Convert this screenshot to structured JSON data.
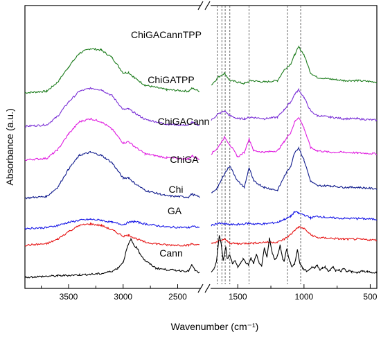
{
  "chart_data": {
    "type": "line",
    "xlabel": "Wavenumber (cm⁻¹)",
    "ylabel": "Absorbance (a.u.)",
    "x_axis": {
      "reversed": true,
      "broken": true,
      "break_between": [
        2300,
        1700
      ],
      "segments": [
        [
          3900,
          2300
        ],
        [
          1700,
          450
        ]
      ],
      "ticks": [
        3500,
        3000,
        2500,
        1500,
        1000,
        500
      ],
      "tick_labels": [
        "3500",
        "3000",
        "2500",
        "1500",
        "1000",
        "500"
      ]
    },
    "y_ticks_shown": false,
    "reference_lines_x": [
      1655,
      1620,
      1595,
      1560,
      1415,
      1125,
      1025
    ],
    "series": [
      {
        "name": "ChiGACannTPP",
        "color": "#1e7d1e",
        "offset": 6.0,
        "x": [
          3900,
          3700,
          3600,
          3500,
          3400,
          3300,
          3200,
          3100,
          3000,
          2950,
          2900,
          2800,
          2600,
          2400,
          2370,
          2300,
          1700,
          1650,
          1600,
          1560,
          1500,
          1450,
          1400,
          1300,
          1200,
          1150,
          1100,
          1070,
          1040,
          1000,
          950,
          900,
          800,
          700,
          600,
          450
        ],
        "y": [
          0.05,
          0.1,
          0.4,
          0.9,
          1.35,
          1.5,
          1.45,
          1.2,
          0.7,
          0.72,
          0.55,
          0.3,
          0.15,
          0.1,
          0.2,
          0.1,
          0.3,
          0.55,
          0.7,
          0.45,
          0.4,
          0.35,
          0.45,
          0.4,
          0.45,
          0.8,
          1.0,
          1.3,
          1.55,
          1.3,
          0.7,
          0.55,
          0.5,
          0.45,
          0.45,
          0.4
        ]
      },
      {
        "name": "ChiGATPP",
        "color": "#7a2fd6",
        "offset": 4.9,
        "x": [
          3900,
          3700,
          3600,
          3500,
          3400,
          3300,
          3200,
          3100,
          3000,
          2950,
          2900,
          2800,
          2600,
          2400,
          2370,
          2300,
          1700,
          1650,
          1600,
          1560,
          1500,
          1450,
          1400,
          1300,
          1200,
          1150,
          1100,
          1070,
          1040,
          1000,
          950,
          900,
          800,
          700,
          600,
          450
        ],
        "y": [
          0.05,
          0.1,
          0.38,
          0.85,
          1.2,
          1.3,
          1.25,
          1.05,
          0.6,
          0.62,
          0.5,
          0.28,
          0.12,
          0.08,
          0.18,
          0.08,
          0.25,
          0.45,
          0.55,
          0.4,
          0.3,
          0.3,
          0.35,
          0.3,
          0.35,
          0.6,
          0.85,
          1.1,
          1.25,
          1.0,
          0.55,
          0.4,
          0.35,
          0.3,
          0.3,
          0.25
        ]
      },
      {
        "name": "ChiGACann",
        "color": "#e01ee0",
        "offset": 3.8,
        "x": [
          3900,
          3700,
          3600,
          3500,
          3400,
          3300,
          3200,
          3100,
          3000,
          2950,
          2900,
          2800,
          2600,
          2400,
          2370,
          2300,
          1700,
          1650,
          1600,
          1560,
          1500,
          1450,
          1415,
          1380,
          1300,
          1200,
          1150,
          1100,
          1070,
          1040,
          1000,
          950,
          900,
          800,
          700,
          600,
          450
        ],
        "y": [
          0.05,
          0.1,
          0.38,
          0.9,
          1.3,
          1.4,
          1.3,
          1.05,
          0.6,
          0.65,
          0.5,
          0.25,
          0.12,
          0.08,
          0.18,
          0.08,
          0.25,
          0.45,
          0.8,
          0.55,
          0.15,
          0.3,
          0.75,
          0.35,
          0.3,
          0.35,
          0.65,
          0.95,
          1.3,
          1.45,
          1.1,
          0.45,
          0.35,
          0.3,
          0.3,
          0.28,
          0.25
        ]
      },
      {
        "name": "ChiGA",
        "color": "#0f1a8c",
        "offset": 2.55,
        "x": [
          3900,
          3700,
          3600,
          3500,
          3400,
          3300,
          3200,
          3100,
          3000,
          2950,
          2900,
          2800,
          2600,
          2400,
          2370,
          2300,
          1700,
          1650,
          1600,
          1560,
          1500,
          1450,
          1415,
          1380,
          1300,
          1200,
          1150,
          1100,
          1070,
          1040,
          1000,
          950,
          900,
          800,
          700,
          600,
          450
        ],
        "y": [
          0.05,
          0.1,
          0.4,
          1.0,
          1.45,
          1.55,
          1.45,
          1.2,
          0.7,
          0.72,
          0.55,
          0.3,
          0.12,
          0.08,
          0.18,
          0.08,
          0.2,
          0.4,
          0.85,
          1.1,
          0.6,
          0.4,
          1.05,
          0.6,
          0.4,
          0.3,
          0.75,
          1.1,
          1.55,
          1.7,
          1.3,
          0.6,
          0.45,
          0.45,
          0.4,
          0.4,
          0.35
        ]
      },
      {
        "name": "Chi",
        "color": "#1414e6",
        "offset": 1.55,
        "x": [
          3900,
          3700,
          3600,
          3500,
          3400,
          3300,
          3200,
          3100,
          3000,
          2950,
          2900,
          2800,
          2600,
          2400,
          2370,
          2300,
          1700,
          1650,
          1600,
          1560,
          1500,
          1420,
          1380,
          1300,
          1200,
          1150,
          1100,
          1070,
          1040,
          1000,
          950,
          900,
          800,
          700,
          600,
          450
        ],
        "y": [
          0.05,
          0.08,
          0.15,
          0.25,
          0.32,
          0.35,
          0.32,
          0.25,
          0.18,
          0.25,
          0.28,
          0.2,
          0.1,
          0.08,
          0.12,
          0.08,
          0.15,
          0.22,
          0.2,
          0.18,
          0.18,
          0.22,
          0.2,
          0.2,
          0.25,
          0.35,
          0.45,
          0.6,
          0.55,
          0.5,
          0.4,
          0.45,
          0.4,
          0.38,
          0.38,
          0.35
        ]
      },
      {
        "name": "GA",
        "color": "#e61414",
        "offset": 1.0,
        "x": [
          3900,
          3700,
          3600,
          3500,
          3400,
          3300,
          3200,
          3100,
          3000,
          2950,
          2900,
          2800,
          2600,
          2400,
          2370,
          2300,
          1700,
          1650,
          1600,
          1560,
          1500,
          1420,
          1380,
          1300,
          1200,
          1150,
          1100,
          1070,
          1040,
          1000,
          950,
          900,
          800,
          700,
          600,
          450
        ],
        "y": [
          0.05,
          0.1,
          0.25,
          0.5,
          0.7,
          0.75,
          0.7,
          0.55,
          0.35,
          0.38,
          0.3,
          0.15,
          0.06,
          0.05,
          0.1,
          0.05,
          0.1,
          0.18,
          0.25,
          0.12,
          0.1,
          0.12,
          0.12,
          0.15,
          0.15,
          0.25,
          0.4,
          0.55,
          0.65,
          0.6,
          0.4,
          0.3,
          0.28,
          0.25,
          0.25,
          0.22
        ]
      },
      {
        "name": "Cann",
        "color": "#000000",
        "offset": 0.0,
        "x": [
          3900,
          3600,
          3400,
          3200,
          3100,
          3050,
          3000,
          2960,
          2930,
          2900,
          2870,
          2850,
          2800,
          2700,
          2600,
          2400,
          2370,
          2340,
          2300,
          1700,
          1680,
          1660,
          1640,
          1625,
          1610,
          1590,
          1580,
          1560,
          1540,
          1520,
          1500,
          1480,
          1460,
          1440,
          1420,
          1400,
          1380,
          1360,
          1340,
          1320,
          1300,
          1280,
          1260,
          1240,
          1220,
          1200,
          1180,
          1160,
          1150,
          1130,
          1110,
          1090,
          1070,
          1050,
          1030,
          1010,
          1000,
          980,
          960,
          940,
          920,
          900,
          880,
          860,
          840,
          820,
          800,
          780,
          760,
          740,
          720,
          700,
          680,
          660,
          640,
          600,
          560,
          520,
          480,
          450
        ],
        "y": [
          0.0,
          0.05,
          0.08,
          0.12,
          0.2,
          0.3,
          0.5,
          1.0,
          1.25,
          1.05,
          0.95,
          0.8,
          0.55,
          0.3,
          0.25,
          0.2,
          0.4,
          0.22,
          0.15,
          0.15,
          0.25,
          0.55,
          1.35,
          1.1,
          0.55,
          1.0,
          0.6,
          0.75,
          0.45,
          0.55,
          0.35,
          0.45,
          0.6,
          0.5,
          0.4,
          0.65,
          0.45,
          0.75,
          0.5,
          0.35,
          0.95,
          0.65,
          1.3,
          0.8,
          0.55,
          0.7,
          1.05,
          0.6,
          0.5,
          0.95,
          0.55,
          0.35,
          0.45,
          0.9,
          0.45,
          0.3,
          0.25,
          0.2,
          0.25,
          0.35,
          0.3,
          0.4,
          0.25,
          0.3,
          0.35,
          0.2,
          0.25,
          0.35,
          0.2,
          0.25,
          0.2,
          0.3,
          0.2,
          0.22,
          0.18,
          0.15,
          0.2,
          0.18,
          0.15,
          0.15
        ]
      }
    ]
  }
}
